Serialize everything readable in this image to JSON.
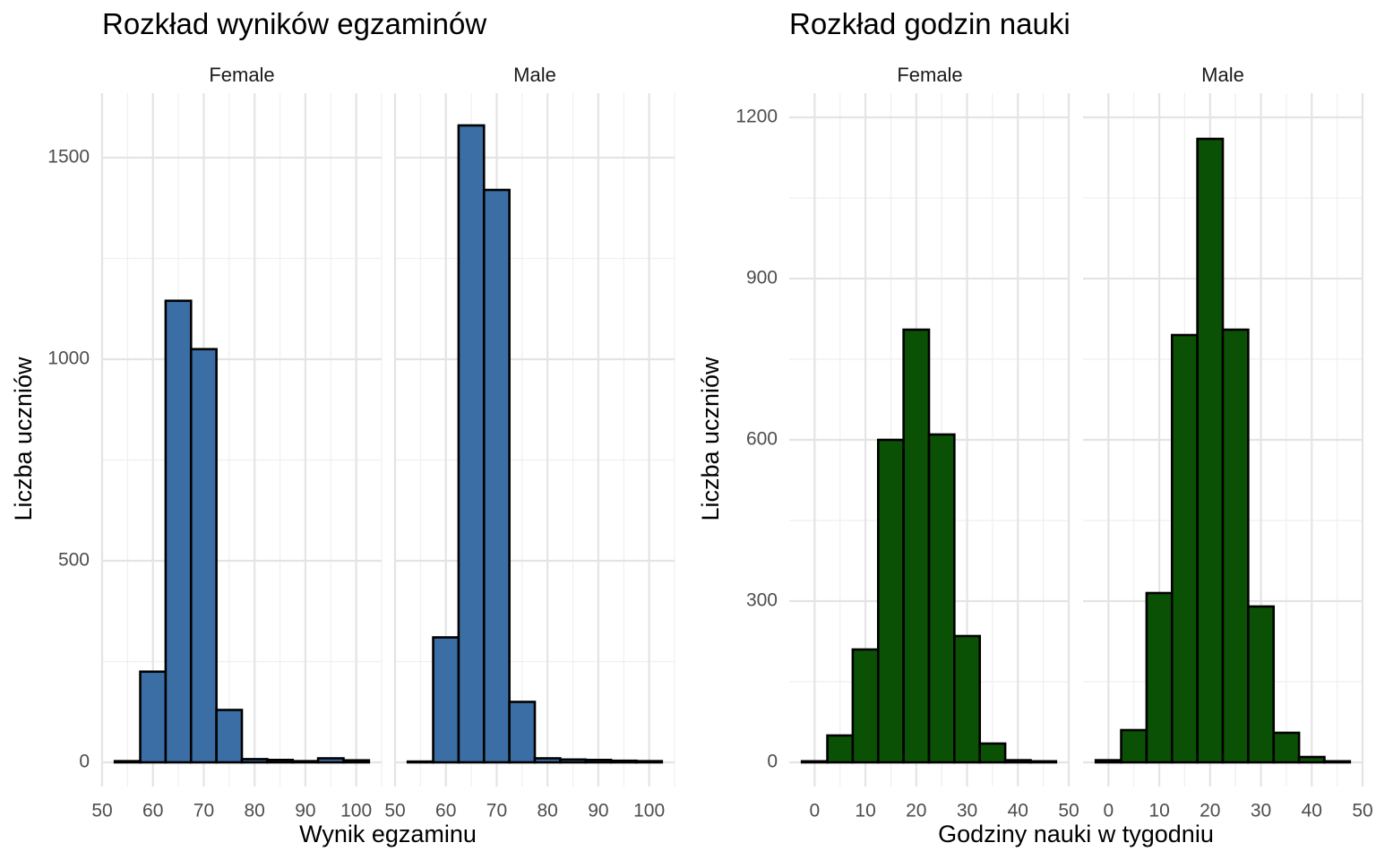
{
  "colors": {
    "scores_fill": "#3a6ea5",
    "hours_fill": "#0b5105",
    "bar_outline": "#000000",
    "grid": "#e4e4e4"
  },
  "chart_data": [
    {
      "type": "bar",
      "title": "Rozkład wyników egzaminów",
      "xlabel": "Wynik egzaminu",
      "ylabel": "Liczba uczniów",
      "facets": [
        "Female",
        "Male"
      ],
      "bin_width": 5,
      "xlim": [
        50,
        105
      ],
      "ylim": [
        -60,
        1660
      ],
      "xticks": [
        50,
        60,
        70,
        80,
        90,
        100
      ],
      "yticks": [
        0,
        500,
        1000,
        1500
      ],
      "bin_starts": [
        52.5,
        57.5,
        62.5,
        67.5,
        72.5,
        77.5,
        82.5,
        87.5,
        92.5,
        97.5
      ],
      "series": [
        {
          "name": "Female",
          "values": [
            3,
            225,
            1145,
            1025,
            130,
            8,
            6,
            3,
            10,
            5
          ]
        },
        {
          "name": "Male",
          "values": [
            2,
            310,
            1580,
            1420,
            150,
            10,
            7,
            6,
            4,
            3
          ]
        }
      ]
    },
    {
      "type": "bar",
      "title": "Rozkład godzin nauki",
      "xlabel": "Godziny nauki w tygodniu",
      "ylabel": "Liczba uczniów",
      "facets": [
        "Female",
        "Male"
      ],
      "bin_width": 5,
      "xlim": [
        -5,
        50
      ],
      "ylim": [
        -45,
        1245
      ],
      "xticks": [
        0,
        10,
        20,
        30,
        40,
        50
      ],
      "yticks": [
        0,
        300,
        600,
        900,
        1200
      ],
      "bin_starts": [
        -2.5,
        2.5,
        7.5,
        12.5,
        17.5,
        22.5,
        27.5,
        32.5,
        37.5,
        42.5
      ],
      "series": [
        {
          "name": "Female",
          "values": [
            2,
            50,
            210,
            600,
            805,
            610,
            235,
            35,
            4,
            2
          ]
        },
        {
          "name": "Male",
          "values": [
            4,
            60,
            315,
            795,
            1160,
            805,
            290,
            55,
            10,
            2
          ]
        }
      ]
    }
  ]
}
